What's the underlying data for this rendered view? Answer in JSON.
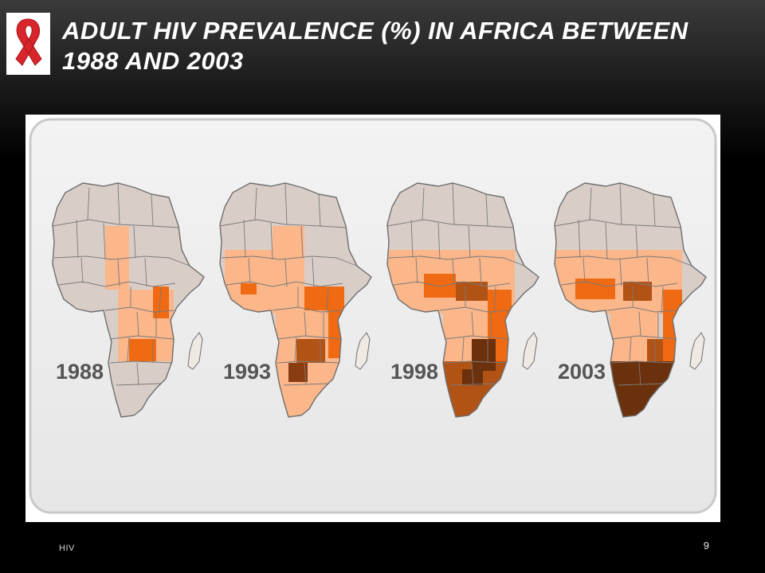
{
  "slide": {
    "title": "ADULT HIV PREVALENCE (%) IN AFRICA BETWEEN 1988 AND 2003",
    "footer": "HIV",
    "page_number": "9"
  },
  "logo": {
    "icon": "red-awareness-ribbon-icon"
  },
  "figure": {
    "maps": [
      {
        "year": "1988"
      },
      {
        "year": "1993"
      },
      {
        "year": "1998"
      },
      {
        "year": "2003"
      }
    ]
  },
  "colors": {
    "ribbon": "#d8262c",
    "panel": "#eeeeee",
    "neutral": "#d9cec7",
    "light_orange": "#fbb68a",
    "orange": "#ef6a12",
    "brown": "#b25316",
    "dark_brown": "#6b300c",
    "madagascar": "#efe9e4"
  }
}
